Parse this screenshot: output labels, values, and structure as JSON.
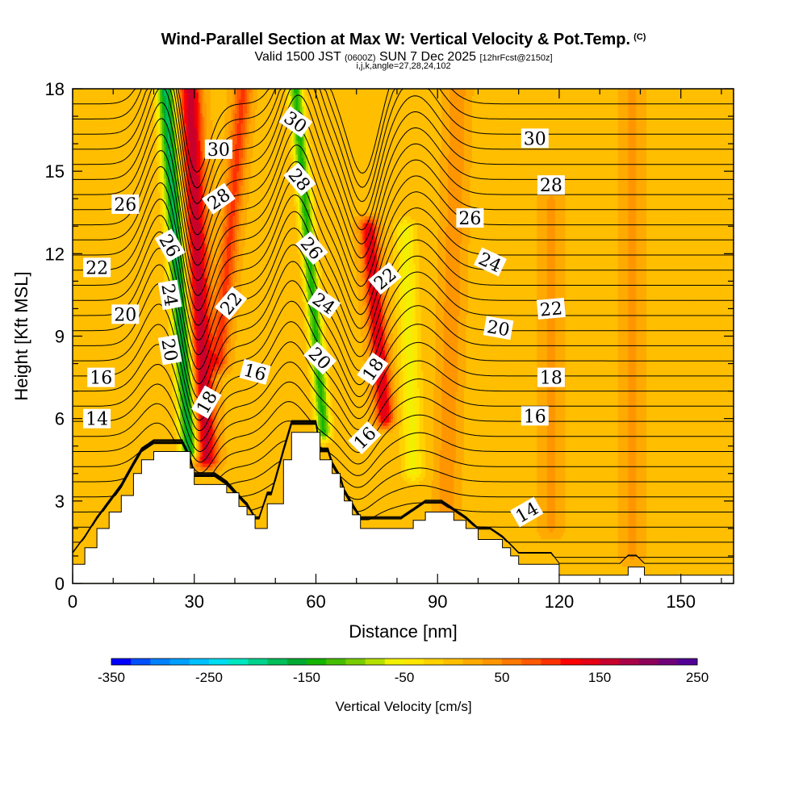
{
  "chart_data": {
    "type": "heatmap",
    "title": "Wind-Parallel Section at Max W: Vertical Velocity & Pot.Temp.",
    "title_mark": "(C)",
    "subtitle_main": "Valid 1500 JST",
    "subtitle_utc": "(0600Z)",
    "subtitle_date": "SUN 7 Dec 2025",
    "subtitle_run": "[12hrFcst@2150z]",
    "subtitle_ijk": "i,j,k,angle=27,28,24,102",
    "xlabel": "Distance [nm]",
    "ylabel": "Height [Kft MSL]",
    "xlim": [
      0,
      163
    ],
    "ylim": [
      0,
      18
    ],
    "x_ticks": [
      "0",
      "30",
      "60",
      "90",
      "120",
      "150"
    ],
    "x_tick_values": [
      0,
      30,
      60,
      90,
      120,
      150
    ],
    "y_ticks": [
      "0",
      "3",
      "6",
      "9",
      "12",
      "15",
      "18"
    ],
    "y_tick_values": [
      0,
      3,
      6,
      9,
      12,
      15,
      18
    ],
    "colorbar": {
      "label": "Vertical Velocity [cm/s]",
      "min": -350,
      "max": 250,
      "step": 20,
      "tick_labels": [
        "-350",
        "-250",
        "-150",
        "-50",
        "50",
        "150",
        "250"
      ],
      "tick_values": [
        -350,
        -250,
        -150,
        -50,
        50,
        150,
        250
      ],
      "colors": [
        "#0000ff",
        "#0050ff",
        "#0082ff",
        "#00a0ff",
        "#00c0ff",
        "#00dcf0",
        "#00e6c0",
        "#00d28c",
        "#00be5a",
        "#00aa32",
        "#14b400",
        "#46be00",
        "#78cd00",
        "#b4e000",
        "#f0f000",
        "#ffe600",
        "#ffd200",
        "#ffbe00",
        "#ffaa00",
        "#ff9600",
        "#ff7800",
        "#ff5a00",
        "#ff3200",
        "#ff0000",
        "#e60014",
        "#c8002d",
        "#aa0046",
        "#8c005a",
        "#6e0078",
        "#500096"
      ]
    },
    "terrain_profile": {
      "x": [
        0,
        3,
        6,
        9,
        12,
        15,
        17,
        20,
        24,
        27,
        29,
        30,
        33,
        35,
        38,
        41,
        43,
        45,
        46,
        48,
        49,
        52,
        54,
        56,
        58,
        60,
        61,
        63,
        64,
        66,
        67,
        69,
        71,
        73,
        75,
        78,
        81,
        84,
        87,
        89,
        91,
        94,
        97,
        100,
        103,
        106,
        108,
        110,
        112,
        115,
        118,
        120,
        123,
        126,
        129,
        132,
        135,
        137,
        139,
        141,
        143,
        146,
        149,
        152,
        155,
        158,
        160,
        163
      ],
      "height": [
        0.7,
        1.3,
        2.0,
        2.6,
        3.2,
        4.0,
        4.5,
        4.8,
        4.8,
        4.8,
        4.2,
        3.6,
        3.6,
        3.6,
        3.3,
        2.8,
        2.5,
        2.0,
        2.0,
        2.9,
        2.9,
        4.5,
        5.5,
        5.5,
        5.5,
        5.5,
        4.5,
        4.5,
        4.0,
        3.5,
        3.0,
        2.5,
        2.0,
        2.0,
        2.0,
        2.0,
        2.0,
        2.3,
        2.6,
        2.6,
        2.6,
        2.3,
        2.0,
        1.6,
        1.6,
        1.3,
        1.0,
        0.7,
        0.7,
        0.7,
        0.7,
        0.3,
        0.3,
        0.3,
        0.3,
        0.3,
        0.3,
        0.6,
        0.6,
        0.3,
        0.3,
        0.3,
        0.3,
        0.3,
        0.3,
        0.3,
        0.3,
        0.3
      ]
    },
    "velocity_features": [
      {
        "name": "downdraft-1",
        "sign": "down",
        "peak_cm_s": -180,
        "x_top": 23,
        "x_bottom": 29,
        "z_top": 18,
        "z_bottom": 4.8,
        "width_nm": 5
      },
      {
        "name": "updraft-1",
        "sign": "up",
        "peak_cm_s": 160,
        "x_top": 29,
        "x_bottom": 33,
        "z_top": 18,
        "z_bottom": 4.5,
        "width_nm": 6
      },
      {
        "name": "updraft-1b",
        "sign": "up",
        "peak_cm_s": 90,
        "x_top": 42,
        "x_bottom": 36,
        "z_top": 18,
        "z_bottom": 8,
        "width_nm": 5
      },
      {
        "name": "downdraft-2",
        "sign": "down",
        "peak_cm_s": -140,
        "x_top": 55,
        "x_bottom": 62,
        "z_top": 18,
        "z_bottom": 5.5,
        "width_nm": 4
      },
      {
        "name": "updraft-2",
        "sign": "up",
        "peak_cm_s": 140,
        "x_top": 73,
        "x_bottom": 77,
        "z_top": 13,
        "z_bottom": 6,
        "width_nm": 5
      },
      {
        "name": "weak-down-3",
        "sign": "down",
        "peak_cm_s": -60,
        "x_top": 82,
        "x_bottom": 84,
        "z_top": 13,
        "z_bottom": 4,
        "width_nm": 6
      },
      {
        "name": "weak-up-4",
        "sign": "up",
        "peak_cm_s": 40,
        "x_top": 95,
        "x_bottom": 92,
        "z_top": 18,
        "z_bottom": 2,
        "width_nm": 6
      },
      {
        "name": "weak-up-5",
        "sign": "up",
        "peak_cm_s": 30,
        "x_top": 118,
        "x_bottom": 118,
        "z_top": 14,
        "z_bottom": 2,
        "width_nm": 6
      },
      {
        "name": "weak-up-6",
        "sign": "up",
        "peak_cm_s": 30,
        "x_top": 138,
        "x_bottom": 138,
        "z_top": 18,
        "z_bottom": 1,
        "width_nm": 6
      }
    ],
    "theta_contours_C": [
      14,
      16,
      18,
      20,
      22,
      24,
      26,
      28,
      30
    ],
    "contour_labels": [
      {
        "text": "14",
        "x": 6,
        "z": 6.0,
        "angle": 0
      },
      {
        "text": "16",
        "x": 7,
        "z": 7.5,
        "angle": 0
      },
      {
        "text": "20",
        "x": 13,
        "z": 9.8,
        "angle": 0
      },
      {
        "text": "22",
        "x": 6,
        "z": 11.5,
        "angle": 0
      },
      {
        "text": "26",
        "x": 13,
        "z": 13.8,
        "angle": 0
      },
      {
        "text": "26",
        "x": 24,
        "z": 12.3,
        "angle": 60
      },
      {
        "text": "24",
        "x": 24,
        "z": 10.5,
        "angle": 80
      },
      {
        "text": "20",
        "x": 24,
        "z": 8.5,
        "angle": 80
      },
      {
        "text": "18",
        "x": 33,
        "z": 6.6,
        "angle": -60
      },
      {
        "text": "30",
        "x": 36,
        "z": 15.8,
        "angle": 0
      },
      {
        "text": "28",
        "x": 36,
        "z": 14.0,
        "angle": -35
      },
      {
        "text": "22",
        "x": 39,
        "z": 10.2,
        "angle": -50
      },
      {
        "text": "16",
        "x": 45,
        "z": 7.7,
        "angle": 15
      },
      {
        "text": "30",
        "x": 55,
        "z": 16.8,
        "angle": 35
      },
      {
        "text": "28",
        "x": 56,
        "z": 14.7,
        "angle": 50
      },
      {
        "text": "26",
        "x": 59,
        "z": 12.2,
        "angle": 50
      },
      {
        "text": "24",
        "x": 62,
        "z": 10.2,
        "angle": 35
      },
      {
        "text": "20",
        "x": 61,
        "z": 8.2,
        "angle": 45
      },
      {
        "text": "16",
        "x": 72,
        "z": 5.3,
        "angle": -45
      },
      {
        "text": "22",
        "x": 77,
        "z": 11.1,
        "angle": -40
      },
      {
        "text": "18",
        "x": 74,
        "z": 7.8,
        "angle": -55
      },
      {
        "text": "26",
        "x": 98,
        "z": 13.3,
        "angle": 0
      },
      {
        "text": "24",
        "x": 103,
        "z": 11.7,
        "angle": 25
      },
      {
        "text": "20",
        "x": 105,
        "z": 9.3,
        "angle": 10
      },
      {
        "text": "30",
        "x": 114,
        "z": 16.2,
        "angle": 0
      },
      {
        "text": "28",
        "x": 118,
        "z": 14.5,
        "angle": 0
      },
      {
        "text": "22",
        "x": 118,
        "z": 10.0,
        "angle": -5
      },
      {
        "text": "18",
        "x": 118,
        "z": 7.5,
        "angle": 0
      },
      {
        "text": "16",
        "x": 114,
        "z": 6.1,
        "angle": 0
      },
      {
        "text": "14",
        "x": 112,
        "z": 2.6,
        "angle": -30
      }
    ]
  }
}
